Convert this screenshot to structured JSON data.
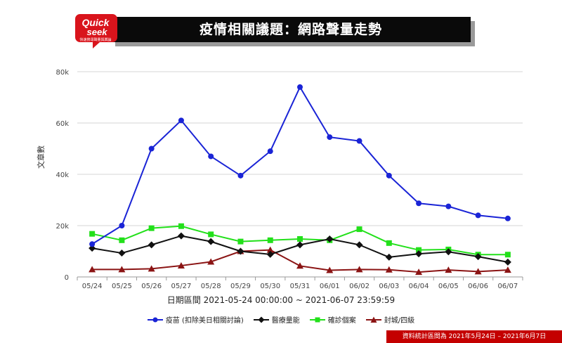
{
  "title": "疫情相關議題：網路聲量走勢",
  "logo": {
    "line1": "Quick",
    "line2": "seek",
    "tagline": "快速搜尋聲量與輿論"
  },
  "footer_note": "資料統計區間為 2021年5月24日 – 2021年6月7日",
  "colors": {
    "title_bg": "#0a0a0a",
    "footer_bg": "#c40000",
    "logo_red": "#d9141c"
  },
  "chart_data": {
    "type": "line",
    "x_title": "日期區間 2021-05-24 00:00:00 ~ 2021-06-07 23:59:59",
    "y_title": "文章數",
    "categories": [
      "05/24",
      "05/25",
      "05/26",
      "05/27",
      "05/28",
      "05/29",
      "05/30",
      "05/31",
      "06/01",
      "06/02",
      "06/03",
      "06/04",
      "06/05",
      "06/06",
      "06/07"
    ],
    "yticks": [
      {
        "v": 0,
        "label": "0"
      },
      {
        "v": 20000,
        "label": "20k"
      },
      {
        "v": 40000,
        "label": "40k"
      },
      {
        "v": 60000,
        "label": "60k"
      },
      {
        "v": 80000,
        "label": "80k"
      }
    ],
    "ylim": [
      0,
      80000
    ],
    "grid": true,
    "legend_position": "bottom",
    "series": [
      {
        "name": "疫苗 (扣除美日相關討論)",
        "color": "#1a24d6",
        "marker": "circle",
        "values": [
          12800,
          20000,
          50000,
          61000,
          47000,
          39500,
          49000,
          74000,
          54500,
          53000,
          39500,
          28700,
          27500,
          24000,
          22800
        ]
      },
      {
        "name": "醫療量能",
        "color": "#111111",
        "marker": "diamond",
        "values": [
          11200,
          9300,
          12500,
          16000,
          13800,
          10000,
          8800,
          12500,
          14800,
          12500,
          7700,
          9000,
          9800,
          7900,
          5800
        ]
      },
      {
        "name": "確診個案",
        "color": "#22e01a",
        "marker": "square",
        "values": [
          16800,
          14300,
          19000,
          19800,
          16600,
          13800,
          14300,
          14800,
          14300,
          18600,
          13200,
          10500,
          10700,
          8700,
          8700
        ]
      },
      {
        "name": "封城/四級",
        "color": "#8b1414",
        "marker": "triangle",
        "values": [
          2900,
          2900,
          3200,
          4400,
          5900,
          10000,
          10500,
          4300,
          2600,
          2900,
          2800,
          1900,
          2700,
          2100,
          2700
        ]
      }
    ]
  }
}
